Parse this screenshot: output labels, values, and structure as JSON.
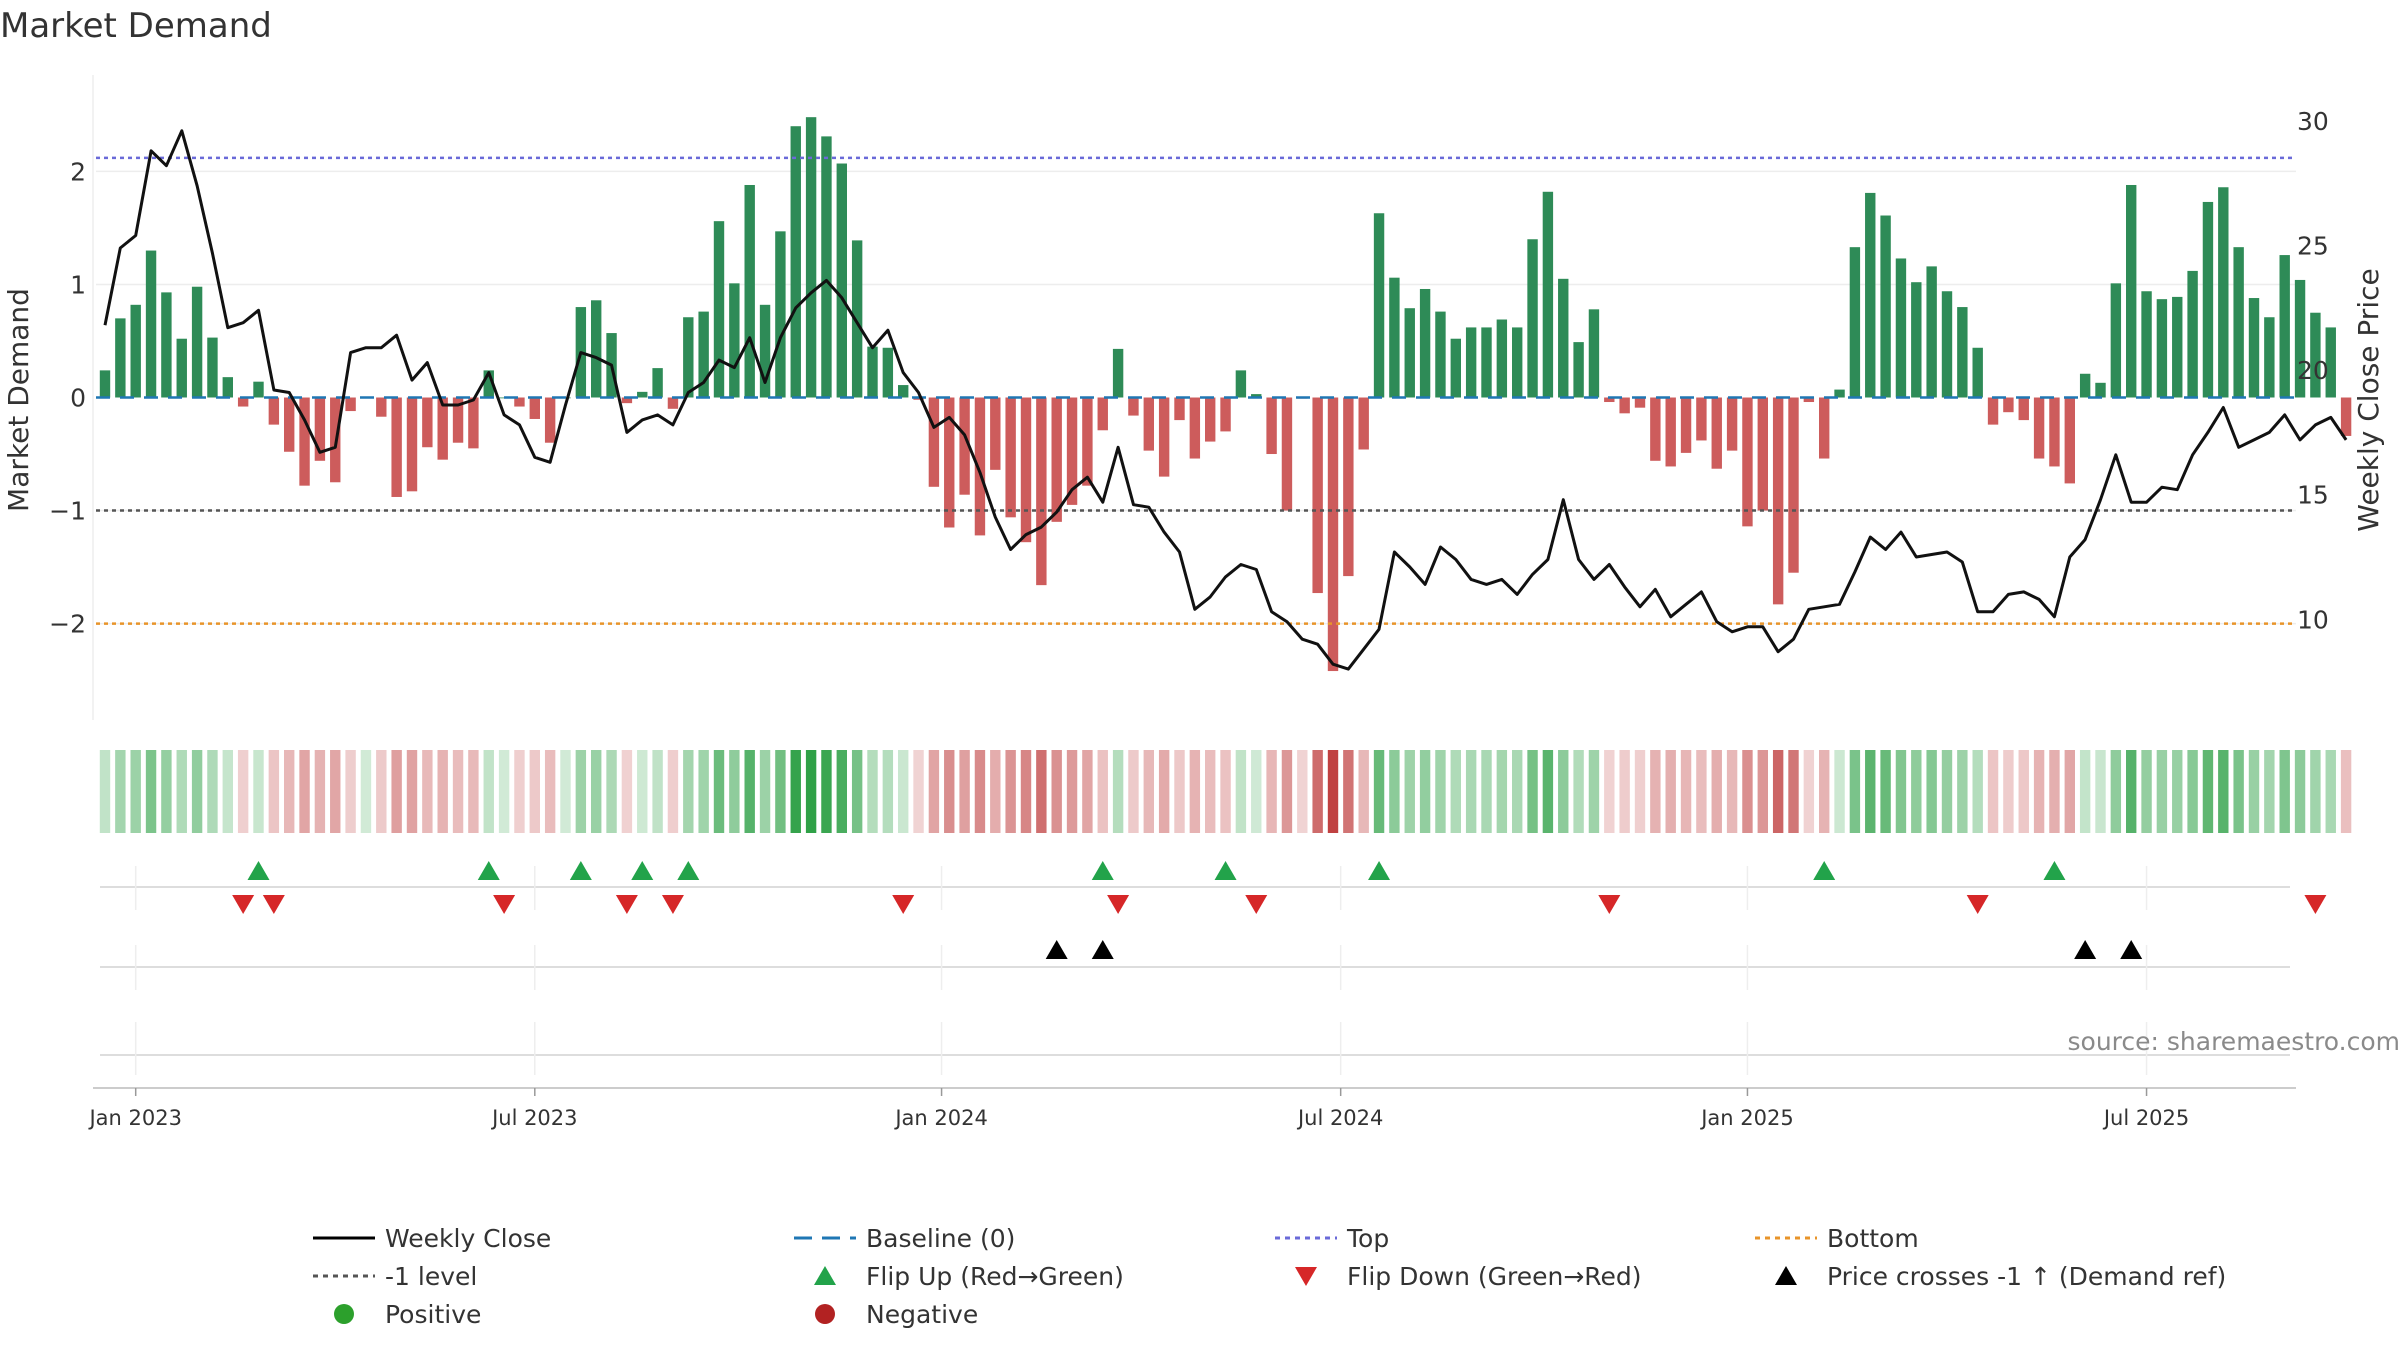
{
  "chart_data": {
    "type": "bar",
    "title": "Market Demand",
    "ylabel": "Market Demand",
    "y2label": "Weekly Close Price",
    "source": "source: sharemaestro.com",
    "ylim": [
      -2.8,
      2.8
    ],
    "y2lim": [
      6.2,
      31.6
    ],
    "y_ticks": [
      {
        "v": 2,
        "label": "2"
      },
      {
        "v": 1,
        "label": "1"
      },
      {
        "v": 0,
        "label": "0"
      },
      {
        "v": -1,
        "label": "−1"
      },
      {
        "v": -2,
        "label": "−2"
      }
    ],
    "y2_ticks": [
      {
        "v": 30,
        "label": "30"
      },
      {
        "v": 25,
        "label": "25"
      },
      {
        "v": 20,
        "label": "20"
      },
      {
        "v": 15,
        "label": "15"
      },
      {
        "v": 10,
        "label": "10"
      }
    ],
    "x_ticks": [
      {
        "i": 2,
        "label": "Jan 2023"
      },
      {
        "i": 28,
        "label": "Jul 2023"
      },
      {
        "i": 54.5,
        "label": "Jan 2024"
      },
      {
        "i": 80.5,
        "label": "Jul 2024"
      },
      {
        "i": 107,
        "label": "Jan 2025"
      },
      {
        "i": 133,
        "label": "Jul 2025"
      }
    ],
    "levels": {
      "top": 2.12,
      "minus_one": -1,
      "bottom": -2,
      "baseline": 0
    },
    "series": [
      {
        "name": "Market Demand",
        "values": [
          0.24,
          0.7,
          0.82,
          1.3,
          0.93,
          0.52,
          0.98,
          0.53,
          0.18,
          -0.08,
          0.14,
          -0.24,
          -0.48,
          -0.78,
          -0.56,
          -0.75,
          -0.12,
          0,
          -0.17,
          -0.88,
          -0.83,
          -0.44,
          -0.55,
          -0.4,
          -0.45,
          0.24,
          0,
          -0.08,
          -0.19,
          -0.4,
          0,
          0.8,
          0.86,
          0.57,
          -0.05,
          0.05,
          0.26,
          -0.1,
          0.71,
          0.76,
          1.56,
          1.01,
          1.88,
          0.82,
          1.47,
          2.4,
          2.48,
          2.31,
          2.07,
          1.39,
          0.45,
          0.44,
          0.11,
          -0.02,
          -0.79,
          -1.15,
          -0.86,
          -1.22,
          -0.64,
          -1.06,
          -1.28,
          -1.66,
          -1.1,
          -0.95,
          -0.78,
          -0.29,
          0.43,
          -0.16,
          -0.47,
          -0.7,
          -0.2,
          -0.54,
          -0.39,
          -0.3,
          0.24,
          0.03,
          -0.5,
          -1,
          -0.01,
          -1.73,
          -2.42,
          -1.58,
          -0.46,
          1.63,
          1.06,
          0.79,
          0.96,
          0.76,
          0.52,
          0.62,
          0.62,
          0.69,
          0.62,
          1.4,
          1.82,
          1.05,
          0.49,
          0.78,
          -0.04,
          -0.14,
          -0.09,
          -0.56,
          -0.61,
          -0.49,
          -0.38,
          -0.63,
          -0.47,
          -1.14,
          -1,
          -1.83,
          -1.55,
          -0.04,
          -0.54,
          0.07,
          1.33,
          1.81,
          1.61,
          1.23,
          1.02,
          1.16,
          0.94,
          0.8,
          0.44,
          -0.24,
          -0.13,
          -0.2,
          -0.54,
          -0.61,
          -0.76,
          0.21,
          0.13,
          1.01,
          1.88,
          0.94,
          0.87,
          0.89,
          1.12,
          1.73,
          1.86,
          1.33,
          0.88,
          0.71,
          1.26,
          1.04,
          0.75,
          0.62,
          -0.34
        ]
      },
      {
        "name": "Weekly Close",
        "values": [
          21.8,
          24.9,
          25.4,
          28.8,
          28.2,
          29.6,
          27.4,
          24.7,
          21.7,
          21.9,
          22.4,
          19.2,
          19.1,
          18.0,
          16.7,
          16.9,
          20.7,
          20.9,
          20.9,
          21.4,
          19.6,
          20.3,
          18.6,
          18.6,
          18.8,
          19.9,
          18.2,
          17.8,
          16.5,
          16.3,
          18.6,
          20.7,
          20.5,
          20.2,
          17.5,
          18.0,
          18.2,
          17.8,
          19.1,
          19.5,
          20.4,
          20.1,
          21.3,
          19.5,
          21.3,
          22.5,
          23.1,
          23.6,
          22.9,
          21.9,
          20.9,
          21.6,
          19.9,
          19.1,
          17.7,
          18.1,
          17.4,
          15.9,
          14.1,
          12.8,
          13.4,
          13.7,
          14.3,
          15.2,
          15.7,
          14.7,
          16.9,
          14.6,
          14.5,
          13.5,
          12.7,
          10.4,
          10.9,
          11.7,
          12.2,
          12.0,
          10.3,
          9.9,
          9.2,
          9.0,
          8.2,
          8.0,
          8.8,
          9.6,
          12.7,
          12.1,
          11.4,
          12.9,
          12.4,
          11.6,
          11.4,
          11.6,
          11.0,
          11.8,
          12.4,
          14.8,
          12.4,
          11.6,
          12.2,
          11.3,
          10.5,
          11.2,
          10.1,
          10.6,
          11.1,
          9.9,
          9.5,
          9.7,
          9.7,
          8.7,
          9.2,
          10.4,
          10.5,
          10.6,
          11.9,
          13.3,
          12.8,
          13.5,
          12.5,
          12.6,
          12.7,
          12.3,
          10.3,
          10.3,
          11.0,
          11.1,
          10.8,
          10.1,
          12.5,
          13.2,
          14.8,
          16.6,
          14.7,
          14.7,
          15.3,
          15.2,
          16.6,
          17.5,
          18.5,
          16.9,
          17.2,
          17.5,
          18.2,
          17.2,
          17.8,
          18.1,
          17.2
        ]
      }
    ],
    "flip_up_index": [
      10,
      25,
      31,
      35,
      38,
      65,
      73,
      83,
      112,
      127
    ],
    "flip_down_index": [
      9,
      11,
      26,
      34,
      37,
      52,
      66,
      75,
      98,
      122,
      144
    ],
    "price_cross_index": [
      62,
      65,
      129,
      132
    ],
    "legend": [
      {
        "label": "Weekly Close",
        "marker": "line",
        "color": "#000000"
      },
      {
        "label": "Baseline (0)",
        "marker": "dash-long",
        "color": "#1f77b4"
      },
      {
        "label": "Top",
        "marker": "dot-line",
        "color": "#6a6ad8"
      },
      {
        "label": "Bottom",
        "marker": "dot-line",
        "color": "#e8942a"
      },
      {
        "label": "-1 level",
        "marker": "dot-line",
        "color": "#555555"
      },
      {
        "label": "Flip Up (Red→Green)",
        "marker": "tri-up",
        "color": "#22a34a"
      },
      {
        "label": "Flip Down (Green→Red)",
        "marker": "tri-down",
        "color": "#d62728"
      },
      {
        "label": "Price crosses -1 ↑ (Demand ref)",
        "marker": "tri-up",
        "color": "#000000"
      },
      {
        "label": "Positive",
        "marker": "circle",
        "color": "#2ca02c"
      },
      {
        "label": "Negative",
        "marker": "circle",
        "color": "#b22222"
      }
    ],
    "colors": {
      "positive": "#2e8b57",
      "negative": "#cd5c5c",
      "close": "#111111",
      "baseline": "#1f77b4",
      "top": "#6a6ad8",
      "bottom": "#e8942a",
      "minus_one": "#555555",
      "flip_up": "#22a34a",
      "flip_down": "#d62728",
      "cross": "#000000"
    }
  }
}
